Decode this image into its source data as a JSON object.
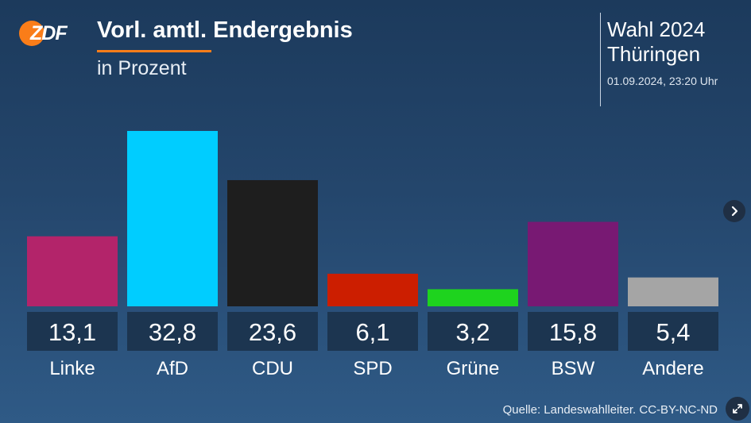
{
  "header": {
    "logo_text": "ZDF",
    "title": "Vorl. amtl. Endergebnis",
    "subtitle": "in Prozent"
  },
  "election": {
    "name": "Wahl 2024",
    "region": "Thüringen",
    "timestamp": "01.09.2024, 23:20 Uhr"
  },
  "footer": {
    "source": "Quelle: Landeswahlleiter. CC-BY-NC-ND"
  },
  "icons": {
    "next": "chevron-right-icon",
    "expand": "expand-icon"
  },
  "chart_data": {
    "type": "bar",
    "title": "Vorl. amtl. Endergebnis",
    "subtitle": "in Prozent",
    "categories": [
      "Linke",
      "AfD",
      "CDU",
      "SPD",
      "Grüne",
      "BSW",
      "Andere"
    ],
    "values": [
      13.1,
      32.8,
      23.6,
      6.1,
      3.2,
      15.8,
      5.4
    ],
    "value_labels": [
      "13,1",
      "32,8",
      "23,6",
      "6,1",
      "3,2",
      "15,8",
      "5,4"
    ],
    "colors": [
      "#b3246a",
      "#00cdff",
      "#1e1e1e",
      "#cc1e00",
      "#1ed31e",
      "#781973",
      "#a5a5a5"
    ],
    "label_box_color": "#1c3550",
    "ylim": [
      0,
      32.8
    ],
    "grid": false,
    "legend": "none"
  }
}
